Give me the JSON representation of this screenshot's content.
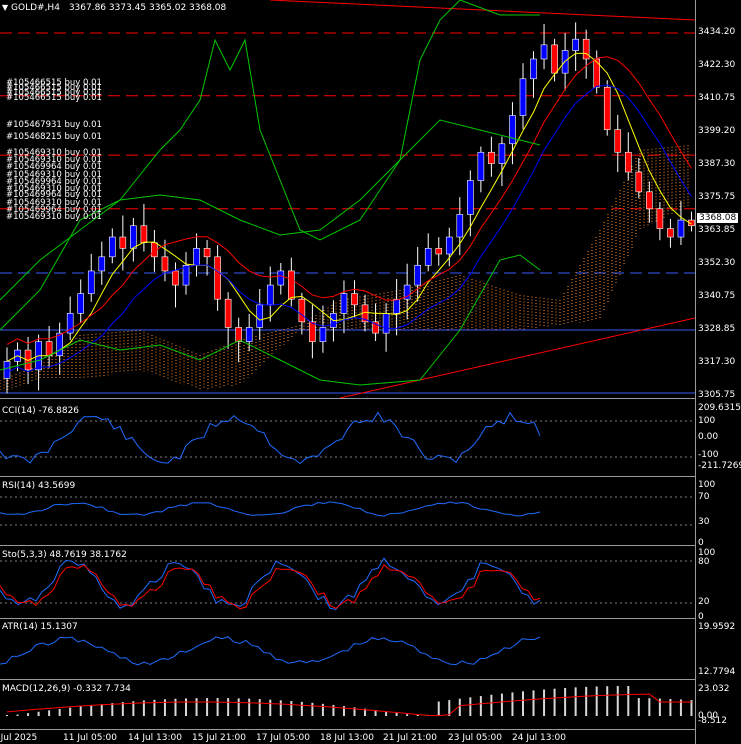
{
  "header": {
    "symbol": "GOLD#,H4",
    "ohlc": "3367.86 3373.45 3365.02 3368.08"
  },
  "price_axis": {
    "labels": [
      "3434.20",
      "3422.30",
      "3410.75",
      "3399.20",
      "3387.30",
      "3375.75",
      "3363.85",
      "3352.30",
      "3340.75",
      "3328.85",
      "3317.30",
      "3305.75"
    ],
    "current_price": "3368.08"
  },
  "orders": [
    "#105466515 buy 0.01",
    "#105467931 buy 0.01",
    "#105468215 buy 0.01",
    "#105469310 buy 0.01",
    "#105469964 buy 0.01"
  ],
  "indicators": {
    "cci": {
      "title": "CCI(14) -76.8826",
      "axis": [
        "209.6315",
        "100",
        "0.00",
        "-100",
        "-211.7269"
      ]
    },
    "rsi": {
      "title": "RSI(14) 43.5699",
      "axis": [
        "100",
        "70",
        "30",
        "0"
      ]
    },
    "stoch": {
      "title": "Sto(5,3,3) 48.7619 38.1762",
      "axis": [
        "100",
        "80",
        "20",
        "0"
      ]
    },
    "atr": {
      "title": "ATR(14) 15.1307",
      "axis": [
        "19.9592",
        "12.7794"
      ]
    },
    "macd": {
      "title": "MACD(12,26,9) -0.332 7.734",
      "axis": [
        "23.032",
        "0.00",
        "-8.512"
      ]
    }
  },
  "time_axis": [
    "9 Jul 2025",
    "11 Jul 05:00",
    "14 Jul 13:00",
    "15 Jul 21:00",
    "17 Jul 05:00",
    "18 Jul 13:00",
    "21 Jul 21:00",
    "23 Jul 05:00",
    "24 Jul 13:00"
  ],
  "colors": {
    "bull": "#0000ff",
    "bear": "#ff0000",
    "ma_fast": "#ffff00",
    "green": "#00c800",
    "ichimoku": "#ff8c2a",
    "osc": "#1f6bff",
    "signal": "#ff0000",
    "grid": "#ffffff",
    "hline_red": "#ff0000",
    "hline_blue": "#3a5bff"
  }
}
